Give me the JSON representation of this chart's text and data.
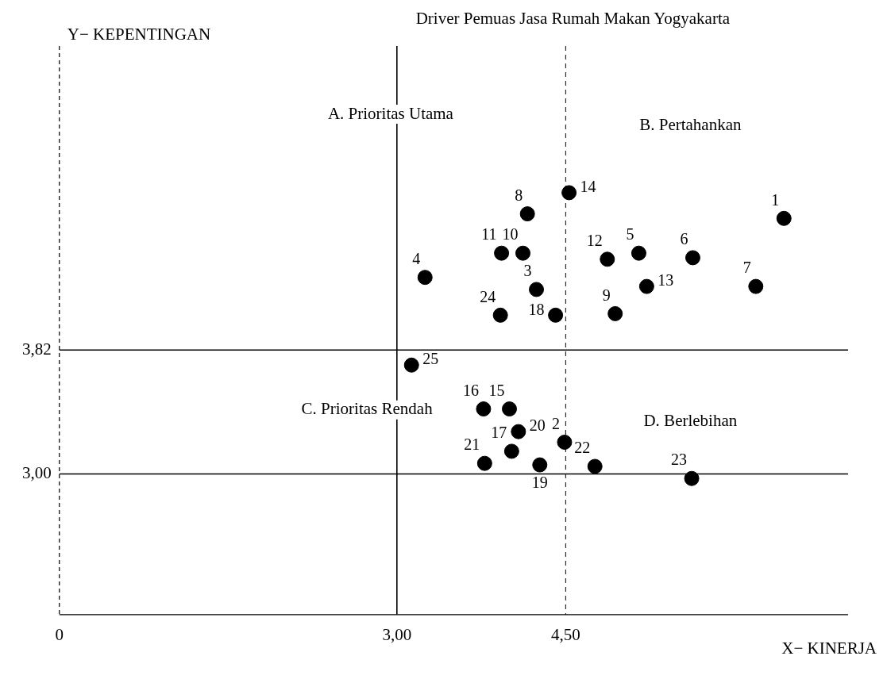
{
  "chart_data": {
    "type": "scatter",
    "title": "Driver Pemuas Jasa Rumah Makan Yogyakarta",
    "xlabel": "X− KINERJA",
    "ylabel": "Y− KEPENTINGAN",
    "x": [
      6.44,
      4.49,
      4.24,
      3.25,
      5.15,
      5.63,
      6.19,
      4.16,
      4.94,
      4.12,
      3.93,
      4.87,
      5.22,
      4.53,
      4.0,
      3.77,
      4.02,
      4.41,
      4.27,
      4.08,
      3.78,
      4.76,
      5.62,
      3.92,
      3.13
    ],
    "values": [
      4.69,
      3.21,
      4.22,
      4.3,
      4.46,
      4.43,
      4.24,
      4.72,
      4.06,
      4.46,
      4.46,
      4.42,
      4.24,
      4.86,
      3.43,
      3.43,
      3.15,
      4.05,
      3.06,
      3.28,
      3.07,
      3.05,
      2.97,
      4.05,
      3.72
    ],
    "color": "#000000",
    "marker": "circle",
    "grid": false,
    "legend": false,
    "xlim": [
      0,
      7.01
    ],
    "ylim": [
      2.07,
      5.83
    ],
    "xticks": [
      0,
      {
        "value": 3,
        "label": "3,00"
      },
      {
        "value": 4.5,
        "label": "4,50"
      }
    ],
    "yticks": [
      {
        "value": 3,
        "label": "3,00"
      },
      {
        "value": 3.82,
        "label": "3,82"
      }
    ],
    "ref_lines": [
      {
        "axis": "x",
        "value": 3,
        "label": null,
        "color": "#000000",
        "line_style": "solid"
      },
      {
        "axis": "x",
        "value": 4.5,
        "label": null,
        "color": "#000000",
        "line_style": "dashed"
      },
      {
        "axis": "y",
        "value": 3.82,
        "label": null,
        "color": "#000000",
        "line_style": "solid"
      },
      {
        "axis": "y",
        "value": 3,
        "label": null,
        "color": "#000000",
        "line_style": "solid"
      }
    ],
    "annotations": [
      "A. Prioritas Utama",
      "B. Pertahankan",
      "C. Prioritas Rendah",
      "D. Berlebihan",
      {
        "text": "1",
        "x": 6.44,
        "y": 4.69
      },
      {
        "text": "2",
        "x": 4.49,
        "y": 3.21
      },
      {
        "text": "3",
        "x": 4.24,
        "y": 4.22
      },
      {
        "text": "4",
        "x": 3.25,
        "y": 4.3
      },
      {
        "text": "5",
        "x": 5.15,
        "y": 4.46
      },
      {
        "text": "6",
        "x": 5.63,
        "y": 4.43
      },
      {
        "text": "7",
        "x": 6.19,
        "y": 4.24
      },
      {
        "text": "8",
        "x": 4.16,
        "y": 4.72
      },
      {
        "text": "9",
        "x": 4.94,
        "y": 4.06
      },
      {
        "text": "10",
        "x": 4.12,
        "y": 4.46
      },
      {
        "text": "11",
        "x": 3.93,
        "y": 4.46
      },
      {
        "text": "12",
        "x": 4.87,
        "y": 4.42
      },
      {
        "text": "13",
        "x": 5.22,
        "y": 4.24
      },
      {
        "text": "14",
        "x": 4.53,
        "y": 4.86
      },
      {
        "text": "15",
        "x": 4.0,
        "y": 3.43
      },
      {
        "text": "16",
        "x": 3.77,
        "y": 3.43
      },
      {
        "text": "17",
        "x": 4.02,
        "y": 3.15
      },
      {
        "text": "18",
        "x": 4.41,
        "y": 4.05
      },
      {
        "text": "19",
        "x": 4.27,
        "y": 3.06
      },
      {
        "text": "20",
        "x": 4.08,
        "y": 3.28
      },
      {
        "text": "21",
        "x": 3.78,
        "y": 3.07
      },
      {
        "text": "22",
        "x": 4.76,
        "y": 3.05
      },
      {
        "text": "23",
        "x": 5.62,
        "y": 2.97
      },
      {
        "text": "24",
        "x": 3.92,
        "y": 4.05
      },
      {
        "text": "25",
        "x": 3.13,
        "y": 3.72
      }
    ]
  }
}
